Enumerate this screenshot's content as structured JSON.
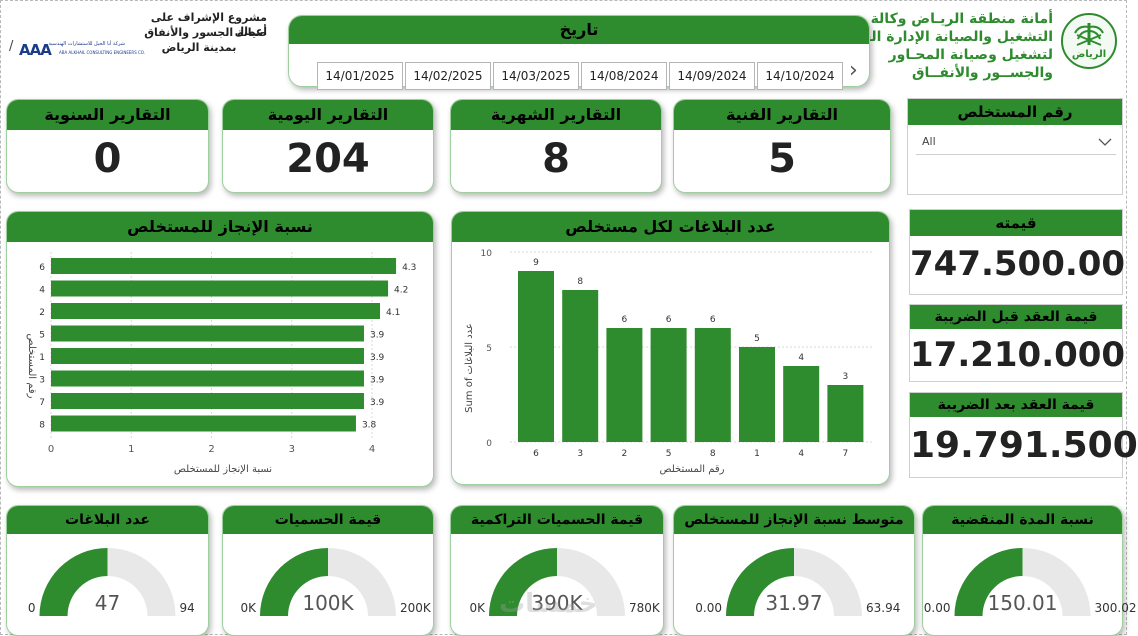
{
  "header": {
    "org_line1": "أمانة منطقة الريـاض وكالة",
    "org_line2": "التشغيل والصيانة الإدارة العامة",
    "org_line3": "لتشغيل وصيانة المحـاور",
    "org_line4": "والجســور والأنفــاق",
    "logo_text": "الرياض",
    "project_line1": "مشروع الإشراف على أعمال",
    "project_line2": "صيانة الجسور والأنفاق",
    "project_line3": "بمدينة الرياض",
    "consultant_logo_text": "AAA",
    "consultant_name_ar": "شركة أبا الخيل للاستشارات الهندسية",
    "consultant_name_en": "ABA ALKHAIL CONSULTING ENGINEERS CO.",
    "separator": "/"
  },
  "date_slicer": {
    "title": "تاريخ",
    "dates": [
      "14/01/2025",
      "14/02/2025",
      "14/03/2025",
      "14/08/2024",
      "14/09/2024",
      "14/10/2024"
    ],
    "next_icon": "›"
  },
  "kpis": {
    "annual": {
      "label": "التقارير السنوية",
      "value": "0"
    },
    "daily": {
      "label": "التقارير اليومية",
      "value": "204"
    },
    "monthly": {
      "label": "التقارير الشهرية",
      "value": "8"
    },
    "technical": {
      "label": "التقارير الفنية",
      "value": "5"
    }
  },
  "extract_filter": {
    "title": "رقم المستخلص",
    "selected": "All"
  },
  "values": {
    "value": {
      "label": "قيمته",
      "amount": "747.500.00"
    },
    "before_tax": {
      "label": "قيمة العقد قبل الضريبة",
      "amount": "17.210.000"
    },
    "after_tax": {
      "label": "قيمة العقد بعد الضريبة",
      "amount": "19.791.500"
    }
  },
  "progress_chart": {
    "title": "نسبة الإنجاز للمستخلص",
    "chart_data": {
      "type": "bar",
      "orientation": "horizontal",
      "categories": [
        "6",
        "4",
        "2",
        "5",
        "1",
        "3",
        "7",
        "8"
      ],
      "values": [
        4.3,
        4.2,
        4.1,
        3.9,
        3.9,
        3.9,
        3.9,
        3.8
      ],
      "xlabel": "نسبة الإنجاز للمستخلص",
      "ylabel": "رقم المستخلص",
      "xlim": [
        0,
        4.3
      ],
      "ticks": [
        "0",
        "1",
        "2",
        "3",
        "4"
      ]
    }
  },
  "reports_chart": {
    "title": "عدد البلاغات لكل مستخلص",
    "chart_data": {
      "type": "bar",
      "categories": [
        "6",
        "3",
        "2",
        "5",
        "8",
        "1",
        "4",
        "7"
      ],
      "values": [
        9,
        8,
        6,
        6,
        6,
        5,
        4,
        3
      ],
      "xlabel": "رقم المستخلص",
      "ylabel": "Sum of عدد البلاغات",
      "ylim": [
        0,
        10
      ],
      "ticks": [
        "0",
        "5",
        "10"
      ]
    }
  },
  "gauges": [
    {
      "label": "نسبة المدة المنقضية",
      "value": 150.01,
      "value_text": "150.01",
      "min_text": "0.00",
      "max_text": "300.02",
      "max": 300.02
    },
    {
      "label": "متوسط نسبة الإنجاز للمستخلص",
      "value": 31.97,
      "value_text": "31.97",
      "min_text": "0.00",
      "max_text": "63.94",
      "max": 63.94
    },
    {
      "label": "قيمة الحسميات التراكمية",
      "value": 390,
      "value_text": "390K",
      "min_text": "0K",
      "max_text": "780K",
      "max": 780
    },
    {
      "label": "قيمة الحسميات",
      "value": 100,
      "value_text": "100K",
      "min_text": "0K",
      "max_text": "200K",
      "max": 200
    },
    {
      "label": "عدد البلاغات",
      "value": 47,
      "value_text": "47",
      "min_text": "0",
      "max_text": "94",
      "max": 94
    }
  ],
  "watermark": "خمسات",
  "colors": {
    "accent": "#2e8b2e",
    "track": "#e8e8e8",
    "text": "#222222"
  }
}
